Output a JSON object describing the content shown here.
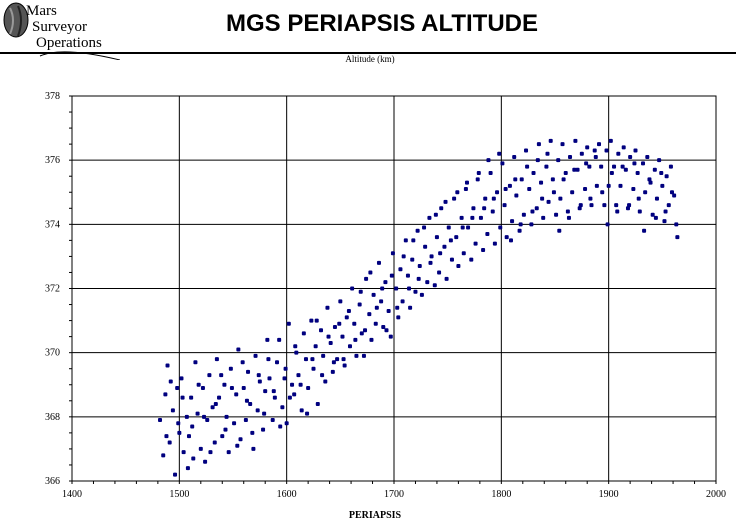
{
  "header": {
    "logo_lines": [
      "Mars",
      "Surveyor",
      "Operations"
    ],
    "title": "MGS PERIAPSIS ALTITUDE"
  },
  "chart_data": {
    "type": "scatter",
    "title": "MGS PERIAPSIS ALTITUDE",
    "xlabel": "PERIAPSIS",
    "ylabel": "Altitude (km)",
    "xlim": [
      1400,
      2000
    ],
    "ylim": [
      366,
      378
    ],
    "x_ticks": [
      1400,
      1500,
      1600,
      1700,
      1800,
      1900,
      2000
    ],
    "y_ticks": [
      366,
      368,
      370,
      372,
      374,
      376,
      378
    ],
    "grid": true,
    "marker_color": "#00007f",
    "points": [
      [
        1482,
        367.9
      ],
      [
        1485,
        366.8
      ],
      [
        1487,
        368.7
      ],
      [
        1489,
        369.6
      ],
      [
        1491,
        367.2
      ],
      [
        1494,
        368.2
      ],
      [
        1496,
        366.2
      ],
      [
        1498,
        368.9
      ],
      [
        1500,
        367.5
      ],
      [
        1502,
        369.2
      ],
      [
        1504,
        366.9
      ],
      [
        1507,
        368.0
      ],
      [
        1509,
        367.4
      ],
      [
        1511,
        368.6
      ],
      [
        1513,
        366.7
      ],
      [
        1515,
        369.7
      ],
      [
        1517,
        368.1
      ],
      [
        1520,
        367.0
      ],
      [
        1522,
        368.9
      ],
      [
        1524,
        366.6
      ],
      [
        1526,
        367.9
      ],
      [
        1528,
        369.3
      ],
      [
        1531,
        368.3
      ],
      [
        1533,
        367.2
      ],
      [
        1535,
        369.8
      ],
      [
        1537,
        368.6
      ],
      [
        1540,
        367.4
      ],
      [
        1542,
        369.0
      ],
      [
        1544,
        368.0
      ],
      [
        1546,
        366.9
      ],
      [
        1548,
        369.5
      ],
      [
        1551,
        367.8
      ],
      [
        1553,
        368.7
      ],
      [
        1555,
        370.1
      ],
      [
        1557,
        367.3
      ],
      [
        1560,
        368.9
      ],
      [
        1562,
        367.9
      ],
      [
        1564,
        369.4
      ],
      [
        1566,
        368.4
      ],
      [
        1569,
        367.0
      ],
      [
        1571,
        369.9
      ],
      [
        1573,
        368.2
      ],
      [
        1575,
        369.1
      ],
      [
        1578,
        367.6
      ],
      [
        1580,
        368.8
      ],
      [
        1582,
        370.4
      ],
      [
        1584,
        369.2
      ],
      [
        1587,
        367.9
      ],
      [
        1589,
        368.6
      ],
      [
        1591,
        369.7
      ],
      [
        1593,
        370.4
      ],
      [
        1596,
        368.3
      ],
      [
        1598,
        369.2
      ],
      [
        1600,
        367.8
      ],
      [
        1602,
        370.9
      ],
      [
        1605,
        369.0
      ],
      [
        1607,
        368.7
      ],
      [
        1609,
        370.0
      ],
      [
        1611,
        369.3
      ],
      [
        1614,
        368.2
      ],
      [
        1616,
        370.6
      ],
      [
        1618,
        369.8
      ],
      [
        1620,
        368.9
      ],
      [
        1623,
        371.0
      ],
      [
        1625,
        369.5
      ],
      [
        1627,
        370.2
      ],
      [
        1629,
        368.4
      ],
      [
        1632,
        370.7
      ],
      [
        1634,
        369.9
      ],
      [
        1636,
        369.1
      ],
      [
        1638,
        371.4
      ],
      [
        1641,
        370.3
      ],
      [
        1643,
        369.4
      ],
      [
        1645,
        370.8
      ],
      [
        1647,
        369.8
      ],
      [
        1650,
        371.6
      ],
      [
        1652,
        370.5
      ],
      [
        1654,
        369.6
      ],
      [
        1656,
        371.1
      ],
      [
        1659,
        370.2
      ],
      [
        1661,
        372.0
      ],
      [
        1663,
        370.9
      ],
      [
        1665,
        369.9
      ],
      [
        1668,
        371.5
      ],
      [
        1670,
        370.6
      ],
      [
        1672,
        369.9
      ],
      [
        1674,
        372.3
      ],
      [
        1677,
        371.2
      ],
      [
        1679,
        370.4
      ],
      [
        1681,
        371.8
      ],
      [
        1683,
        370.9
      ],
      [
        1686,
        372.8
      ],
      [
        1688,
        371.6
      ],
      [
        1690,
        370.8
      ],
      [
        1692,
        372.2
      ],
      [
        1695,
        371.3
      ],
      [
        1697,
        370.5
      ],
      [
        1699,
        373.1
      ],
      [
        1702,
        372.0
      ],
      [
        1704,
        371.1
      ],
      [
        1706,
        372.6
      ],
      [
        1708,
        371.6
      ],
      [
        1711,
        373.5
      ],
      [
        1713,
        372.4
      ],
      [
        1715,
        371.4
      ],
      [
        1717,
        372.9
      ],
      [
        1720,
        371.9
      ],
      [
        1722,
        373.8
      ],
      [
        1724,
        372.7
      ],
      [
        1726,
        371.8
      ],
      [
        1729,
        373.3
      ],
      [
        1731,
        372.2
      ],
      [
        1733,
        374.2
      ],
      [
        1735,
        373.0
      ],
      [
        1738,
        372.1
      ],
      [
        1740,
        373.6
      ],
      [
        1742,
        372.5
      ],
      [
        1744,
        374.5
      ],
      [
        1747,
        373.3
      ],
      [
        1749,
        372.3
      ],
      [
        1751,
        373.9
      ],
      [
        1754,
        372.9
      ],
      [
        1756,
        374.8
      ],
      [
        1758,
        373.6
      ],
      [
        1760,
        372.7
      ],
      [
        1763,
        374.2
      ],
      [
        1765,
        373.1
      ],
      [
        1767,
        375.1
      ],
      [
        1769,
        373.9
      ],
      [
        1772,
        372.9
      ],
      [
        1774,
        374.5
      ],
      [
        1776,
        373.4
      ],
      [
        1778,
        375.4
      ],
      [
        1781,
        374.2
      ],
      [
        1783,
        373.2
      ],
      [
        1785,
        374.8
      ],
      [
        1787,
        373.7
      ],
      [
        1790,
        375.6
      ],
      [
        1792,
        374.4
      ],
      [
        1794,
        373.4
      ],
      [
        1796,
        375.0
      ],
      [
        1799,
        373.9
      ],
      [
        1801,
        375.9
      ],
      [
        1803,
        374.6
      ],
      [
        1805,
        373.6
      ],
      [
        1808,
        375.2
      ],
      [
        1810,
        374.1
      ],
      [
        1812,
        376.1
      ],
      [
        1814,
        374.9
      ],
      [
        1817,
        373.8
      ],
      [
        1819,
        375.4
      ],
      [
        1821,
        374.3
      ],
      [
        1823,
        376.3
      ],
      [
        1826,
        375.1
      ],
      [
        1828,
        374.0
      ],
      [
        1830,
        375.6
      ],
      [
        1833,
        374.5
      ],
      [
        1835,
        376.5
      ],
      [
        1837,
        375.3
      ],
      [
        1839,
        374.2
      ],
      [
        1842,
        375.8
      ],
      [
        1844,
        374.7
      ],
      [
        1846,
        376.6
      ],
      [
        1848,
        375.4
      ],
      [
        1851,
        374.3
      ],
      [
        1853,
        376.0
      ],
      [
        1855,
        374.8
      ],
      [
        1857,
        376.5
      ],
      [
        1860,
        375.6
      ],
      [
        1862,
        374.4
      ],
      [
        1864,
        376.1
      ],
      [
        1866,
        375.0
      ],
      [
        1869,
        376.6
      ],
      [
        1871,
        375.7
      ],
      [
        1873,
        374.5
      ],
      [
        1875,
        376.2
      ],
      [
        1878,
        375.1
      ],
      [
        1880,
        376.4
      ],
      [
        1882,
        375.8
      ],
      [
        1884,
        374.6
      ],
      [
        1887,
        376.3
      ],
      [
        1889,
        375.2
      ],
      [
        1891,
        376.5
      ],
      [
        1893,
        375.8
      ],
      [
        1896,
        374.6
      ],
      [
        1898,
        376.3
      ],
      [
        1900,
        375.2
      ],
      [
        1902,
        376.6
      ],
      [
        1905,
        375.8
      ],
      [
        1907,
        374.6
      ],
      [
        1909,
        376.2
      ],
      [
        1911,
        375.2
      ],
      [
        1914,
        376.4
      ],
      [
        1916,
        375.7
      ],
      [
        1918,
        374.5
      ],
      [
        1920,
        376.1
      ],
      [
        1923,
        375.1
      ],
      [
        1925,
        376.3
      ],
      [
        1927,
        375.6
      ],
      [
        1929,
        374.4
      ],
      [
        1932,
        375.9
      ],
      [
        1934,
        375.0
      ],
      [
        1936,
        376.1
      ],
      [
        1938,
        375.4
      ],
      [
        1941,
        374.3
      ],
      [
        1943,
        375.7
      ],
      [
        1945,
        374.8
      ],
      [
        1947,
        376.0
      ],
      [
        1950,
        375.2
      ],
      [
        1952,
        374.1
      ],
      [
        1954,
        375.5
      ],
      [
        1956,
        374.6
      ],
      [
        1958,
        375.8
      ],
      [
        1961,
        374.9
      ],
      [
        1963,
        374.0
      ],
      [
        1488,
        367.4
      ],
      [
        1492,
        369.1
      ],
      [
        1499,
        367.8
      ],
      [
        1503,
        368.6
      ],
      [
        1508,
        366.4
      ],
      [
        1512,
        367.7
      ],
      [
        1518,
        369.0
      ],
      [
        1523,
        368.0
      ],
      [
        1529,
        366.9
      ],
      [
        1534,
        368.4
      ],
      [
        1539,
        369.3
      ],
      [
        1543,
        367.6
      ],
      [
        1549,
        368.9
      ],
      [
        1554,
        367.1
      ],
      [
        1559,
        369.7
      ],
      [
        1563,
        368.5
      ],
      [
        1568,
        367.5
      ],
      [
        1574,
        369.3
      ],
      [
        1579,
        368.1
      ],
      [
        1583,
        369.8
      ],
      [
        1588,
        368.8
      ],
      [
        1594,
        367.7
      ],
      [
        1599,
        369.5
      ],
      [
        1603,
        368.6
      ],
      [
        1608,
        370.2
      ],
      [
        1613,
        369.0
      ],
      [
        1619,
        368.1
      ],
      [
        1624,
        369.8
      ],
      [
        1628,
        371.0
      ],
      [
        1633,
        369.3
      ],
      [
        1639,
        370.5
      ],
      [
        1644,
        369.7
      ],
      [
        1649,
        370.9
      ],
      [
        1653,
        369.8
      ],
      [
        1658,
        371.3
      ],
      [
        1664,
        370.4
      ],
      [
        1669,
        371.9
      ],
      [
        1673,
        370.7
      ],
      [
        1678,
        372.5
      ],
      [
        1684,
        371.4
      ],
      [
        1689,
        372.0
      ],
      [
        1693,
        370.7
      ],
      [
        1698,
        372.4
      ],
      [
        1703,
        371.4
      ],
      [
        1709,
        373.0
      ],
      [
        1714,
        372.0
      ],
      [
        1718,
        373.5
      ],
      [
        1723,
        372.3
      ],
      [
        1728,
        373.9
      ],
      [
        1734,
        372.8
      ],
      [
        1739,
        374.3
      ],
      [
        1743,
        373.1
      ],
      [
        1748,
        374.7
      ],
      [
        1753,
        373.5
      ],
      [
        1759,
        375.0
      ],
      [
        1764,
        373.9
      ],
      [
        1768,
        375.3
      ],
      [
        1773,
        374.2
      ],
      [
        1779,
        375.6
      ],
      [
        1784,
        374.5
      ],
      [
        1788,
        376.0
      ],
      [
        1793,
        374.8
      ],
      [
        1798,
        376.2
      ],
      [
        1804,
        375.1
      ],
      [
        1809,
        373.5
      ],
      [
        1813,
        375.4
      ],
      [
        1818,
        374.0
      ],
      [
        1824,
        375.8
      ],
      [
        1829,
        374.4
      ],
      [
        1834,
        376.0
      ],
      [
        1838,
        374.8
      ],
      [
        1843,
        376.2
      ],
      [
        1849,
        375.0
      ],
      [
        1854,
        373.8
      ],
      [
        1858,
        375.4
      ],
      [
        1863,
        374.2
      ],
      [
        1868,
        375.7
      ],
      [
        1874,
        374.6
      ],
      [
        1879,
        375.9
      ],
      [
        1883,
        374.8
      ],
      [
        1888,
        376.1
      ],
      [
        1894,
        375.0
      ],
      [
        1899,
        374.0
      ],
      [
        1903,
        375.6
      ],
      [
        1908,
        374.4
      ],
      [
        1913,
        375.8
      ],
      [
        1919,
        374.6
      ],
      [
        1924,
        375.9
      ],
      [
        1928,
        374.8
      ],
      [
        1933,
        373.8
      ],
      [
        1939,
        375.3
      ],
      [
        1944,
        374.2
      ],
      [
        1949,
        375.6
      ],
      [
        1953,
        374.4
      ],
      [
        1959,
        375.0
      ],
      [
        1964,
        373.6
      ]
    ]
  }
}
